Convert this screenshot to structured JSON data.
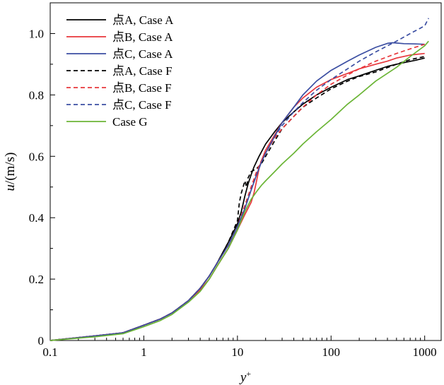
{
  "chart_data": {
    "type": "line",
    "xscale": "log",
    "xlabel_base": "y",
    "xlabel_sup": "+",
    "ylabel_italic": "u",
    "ylabel_rest": "/(m/s)",
    "xlim": [
      0.1,
      1500
    ],
    "ylim": [
      0,
      1.1
    ],
    "xticks": [
      0.1,
      1,
      10,
      100,
      1000
    ],
    "xtick_labels": [
      "0.1",
      "1",
      "10",
      "100",
      "1000"
    ],
    "yticks": [
      0,
      0.2,
      0.4,
      0.6,
      0.8,
      1.0
    ],
    "ytick_labels": [
      "0",
      "0.2",
      "0.4",
      "0.6",
      "0.8",
      "1.0"
    ],
    "legend_position": "top-left",
    "series": [
      {
        "name": "点A, Case A",
        "color": "#000000",
        "dash": false,
        "x": [
          0.1,
          0.3,
          0.6,
          1,
          1.5,
          2,
          3,
          4,
          5,
          6,
          8,
          10,
          11,
          12,
          13,
          14,
          15,
          17,
          20,
          25,
          30,
          40,
          50,
          70,
          100,
          150,
          200,
          300,
          400,
          500,
          600,
          800,
          1000
        ],
        "y": [
          0,
          0.015,
          0.025,
          0.05,
          0.07,
          0.09,
          0.13,
          0.17,
          0.21,
          0.25,
          0.32,
          0.38,
          0.42,
          0.47,
          0.51,
          0.54,
          0.565,
          0.6,
          0.64,
          0.68,
          0.71,
          0.745,
          0.77,
          0.8,
          0.825,
          0.85,
          0.862,
          0.88,
          0.893,
          0.9,
          0.905,
          0.913,
          0.92
        ]
      },
      {
        "name": "点B, Case A",
        "color": "#e8373c",
        "dash": false,
        "x": [
          0.1,
          0.3,
          0.6,
          1,
          1.5,
          2,
          3,
          4,
          5,
          6,
          8,
          10,
          12,
          14,
          15,
          16,
          17,
          18,
          20,
          25,
          30,
          40,
          50,
          70,
          100,
          150,
          200,
          300,
          400,
          500,
          700,
          1000
        ],
        "y": [
          0,
          0.015,
          0.025,
          0.05,
          0.07,
          0.09,
          0.13,
          0.165,
          0.2,
          0.24,
          0.3,
          0.36,
          0.41,
          0.45,
          0.48,
          0.52,
          0.56,
          0.585,
          0.62,
          0.67,
          0.71,
          0.76,
          0.79,
          0.825,
          0.85,
          0.87,
          0.885,
          0.9,
          0.91,
          0.92,
          0.93,
          0.935
        ]
      },
      {
        "name": "点C, Case A",
        "color": "#3b4ea2",
        "dash": false,
        "x": [
          0.1,
          0.3,
          0.6,
          1,
          1.5,
          2,
          3,
          4,
          5,
          6,
          8,
          10,
          12,
          14,
          16,
          18,
          20,
          25,
          30,
          40,
          50,
          70,
          100,
          150,
          200,
          300,
          400,
          450,
          500,
          600,
          800,
          1000
        ],
        "y": [
          0,
          0.015,
          0.025,
          0.05,
          0.07,
          0.09,
          0.13,
          0.17,
          0.21,
          0.25,
          0.31,
          0.37,
          0.43,
          0.49,
          0.54,
          0.58,
          0.61,
          0.665,
          0.71,
          0.76,
          0.8,
          0.845,
          0.88,
          0.91,
          0.93,
          0.955,
          0.968,
          0.97,
          0.969,
          0.967,
          0.966,
          0.965
        ]
      },
      {
        "name": "点A, Case F",
        "color": "#000000",
        "dash": true,
        "x": [
          0.1,
          0.3,
          0.6,
          1,
          1.5,
          2,
          3,
          4,
          5,
          6,
          8,
          10,
          10.5,
          11,
          11.5,
          12,
          12.5,
          13,
          14,
          16,
          18,
          20,
          25,
          30,
          40,
          50,
          70,
          100,
          150,
          200,
          300,
          500,
          700,
          1000
        ],
        "y": [
          0,
          0.015,
          0.025,
          0.05,
          0.07,
          0.09,
          0.13,
          0.17,
          0.21,
          0.25,
          0.32,
          0.39,
          0.45,
          0.48,
          0.5,
          0.52,
          0.5,
          0.53,
          0.55,
          0.56,
          0.575,
          0.6,
          0.65,
          0.69,
          0.73,
          0.76,
          0.79,
          0.82,
          0.845,
          0.86,
          0.875,
          0.9,
          0.915,
          0.925
        ]
      },
      {
        "name": "点B, Case F",
        "color": "#e8373c",
        "dash": true,
        "x": [
          0.1,
          0.3,
          0.6,
          1,
          1.5,
          2,
          3,
          4,
          5,
          6,
          8,
          10,
          12,
          14,
          16,
          18,
          20,
          25,
          30,
          40,
          50,
          70,
          100,
          150,
          200,
          300,
          500,
          700,
          1000
        ],
        "y": [
          0,
          0.015,
          0.025,
          0.05,
          0.07,
          0.09,
          0.13,
          0.17,
          0.21,
          0.25,
          0.31,
          0.37,
          0.44,
          0.5,
          0.55,
          0.585,
          0.61,
          0.66,
          0.69,
          0.73,
          0.76,
          0.8,
          0.835,
          0.865,
          0.885,
          0.91,
          0.935,
          0.95,
          0.965
        ]
      },
      {
        "name": "点C, Case F",
        "color": "#3b4ea2",
        "dash": true,
        "x": [
          0.1,
          0.3,
          0.6,
          1,
          1.5,
          2,
          3,
          4,
          5,
          6,
          8,
          10,
          12,
          14,
          16,
          18,
          20,
          25,
          30,
          40,
          50,
          70,
          100,
          150,
          200,
          300,
          500,
          700,
          1000,
          1100
        ],
        "y": [
          0,
          0.015,
          0.025,
          0.05,
          0.07,
          0.09,
          0.13,
          0.17,
          0.21,
          0.25,
          0.31,
          0.37,
          0.43,
          0.49,
          0.54,
          0.58,
          0.61,
          0.665,
          0.7,
          0.745,
          0.775,
          0.815,
          0.85,
          0.885,
          0.91,
          0.94,
          0.975,
          1.0,
          1.025,
          1.05
        ]
      },
      {
        "name": "Case G",
        "color": "#6bb536",
        "dash": false,
        "x": [
          0.1,
          0.3,
          0.6,
          1,
          1.5,
          2,
          3,
          4,
          5,
          6,
          8,
          10,
          12,
          14,
          16,
          18,
          20,
          25,
          30,
          40,
          50,
          70,
          100,
          150,
          200,
          300,
          500,
          700,
          1000,
          1100
        ],
        "y": [
          0,
          0.012,
          0.022,
          0.045,
          0.065,
          0.085,
          0.125,
          0.16,
          0.2,
          0.24,
          0.3,
          0.36,
          0.42,
          0.46,
          0.485,
          0.505,
          0.52,
          0.55,
          0.575,
          0.61,
          0.64,
          0.68,
          0.72,
          0.77,
          0.8,
          0.845,
          0.89,
          0.925,
          0.96,
          0.975
        ]
      }
    ]
  }
}
